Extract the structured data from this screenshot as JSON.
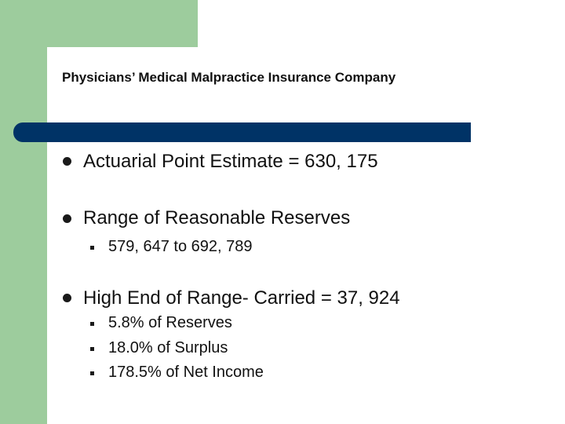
{
  "slide": {
    "title": "Physicians’ Medical Malpractice Insurance Company",
    "bullets": [
      {
        "text": "Actuarial Point Estimate = 630, 175",
        "subitems": []
      },
      {
        "text": "Range of Reasonable Reserves",
        "subitems": [
          "579, 647 to 692, 789"
        ]
      },
      {
        "text": "High End of Range- Carried = 37, 924",
        "subitems": [
          "5.8% of Reserves",
          "18.0% of Surplus",
          "178.5% of Net Income"
        ]
      }
    ]
  },
  "colors": {
    "accent_green": "#9dcc9d",
    "title_bar": "#003366"
  }
}
